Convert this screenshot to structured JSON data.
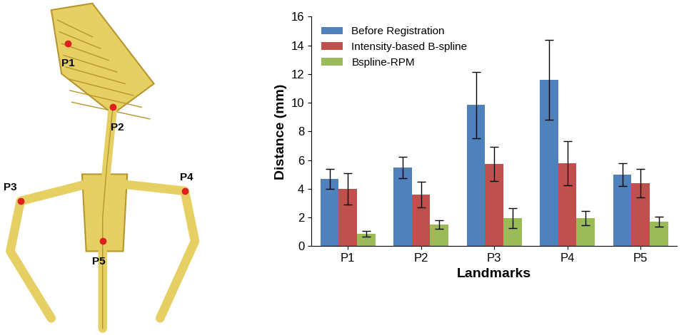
{
  "chart_data": {
    "type": "bar",
    "x_label": "Landmarks",
    "y_label": "Distance (mm)",
    "categories": [
      "P1",
      "P2",
      "P3",
      "P4",
      "P5"
    ],
    "series": [
      {
        "name": "Before Registration",
        "color": "#4f81bd",
        "values": [
          4.7,
          5.5,
          9.85,
          11.6,
          5.0
        ],
        "errors": [
          0.7,
          0.75,
          2.3,
          2.8,
          0.8
        ]
      },
      {
        "name": "Intensity-based B-spline",
        "color": "#c0504d",
        "values": [
          4.0,
          3.6,
          5.75,
          5.8,
          4.4
        ],
        "errors": [
          1.1,
          0.9,
          1.2,
          1.55,
          1.0
        ]
      },
      {
        "name": "Bspline-RPM",
        "color": "#9bbb59",
        "values": [
          0.88,
          1.5,
          1.95,
          1.95,
          1.7
        ],
        "errors": [
          0.2,
          0.3,
          0.7,
          0.5,
          0.35
        ]
      }
    ],
    "ylim": [
      0,
      16
    ],
    "yticks": [
      0,
      2,
      4,
      6,
      8,
      10,
      12,
      14,
      16
    ],
    "legend": "upper left",
    "grid": false
  }
}
